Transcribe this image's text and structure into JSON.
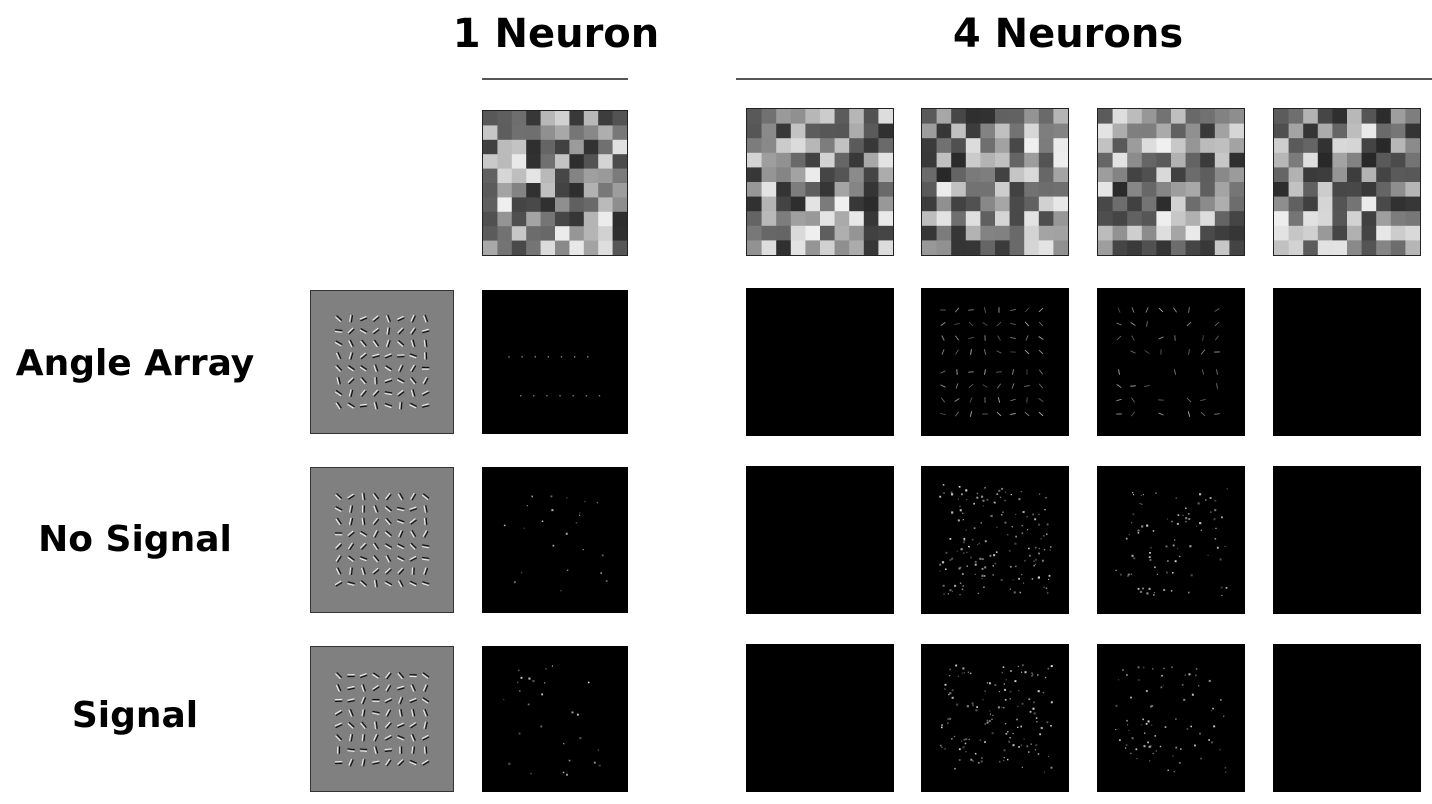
{
  "columns": {
    "one_neuron": {
      "title": "1 Neuron",
      "count": 1
    },
    "four_neurons": {
      "title": "4 Neurons",
      "count": 4
    }
  },
  "rows": [
    {
      "label": "Angle Array",
      "stimulus_icon": "gabor-array-icon",
      "activation": {
        "n1": "sparse-dots-two-rows",
        "n4": [
          "empty",
          "dense-arrows",
          "arrows-medium",
          "empty"
        ]
      }
    },
    {
      "label": "No Signal",
      "stimulus_icon": "gabor-array-icon",
      "activation": {
        "n1": "sparse-scatter",
        "n4": [
          "empty",
          "dense-scatter",
          "medium-scatter",
          "empty"
        ]
      }
    },
    {
      "label": "Signal",
      "stimulus_icon": "gabor-array-icon",
      "activation": {
        "n1": "sparse-scatter",
        "n4": [
          "empty",
          "dense-scatter",
          "medium-scatter",
          "empty"
        ]
      }
    }
  ],
  "weights_icon": "grayscale-weight-grid-icon",
  "colors": {
    "background": "#ffffff",
    "stimulus_gray": "#808080",
    "activation_bg": "#000000"
  }
}
